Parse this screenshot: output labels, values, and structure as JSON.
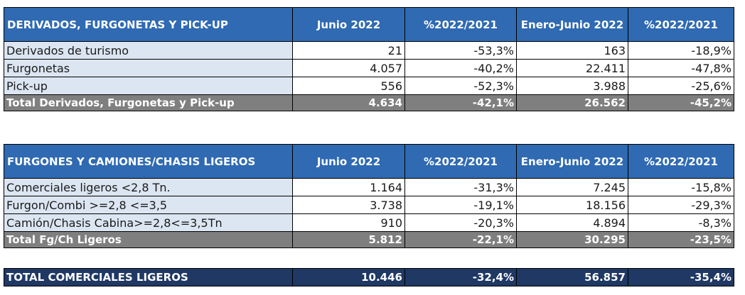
{
  "table1": {
    "headers": [
      "DERIVADOS, FURGONETAS Y PICK-UP",
      "Junio 2022",
      "%2022/2021",
      "Enero-Junio 2022",
      "%2022/2021"
    ],
    "rows": [
      [
        "Derivados de turismo",
        "21",
        "-53,3%",
        "163",
        "-18,9%"
      ],
      [
        "Furgonetas",
        "4.057",
        "-40,2%",
        "22.411",
        "-47,8%"
      ],
      [
        "Pick-up",
        "556",
        "-52,3%",
        "3.988",
        "-25,6%"
      ]
    ],
    "total": [
      "Total Derivados, Furgonetas y Pick-up",
      "4.634",
      "-42,1%",
      "26.562",
      "-45,2%"
    ]
  },
  "table2": {
    "headers": [
      "FURGONES Y CAMIONES/CHASIS LIGEROS",
      "Junio 2022",
      "%2022/2021",
      "Enero-Junio 2022",
      "%2022/2021"
    ],
    "rows": [
      [
        "Comerciales ligeros <2,8 Tn.",
        "1.164",
        "-31,3%",
        "7.245",
        "-15,8%"
      ],
      [
        "Furgon/Combi >=2,8 <=3,5",
        "3.738",
        "-19,1%",
        "18.156",
        "-29,3%"
      ],
      [
        "Camión/Chasis Cabina>=2,8<=3,5Tn",
        "910",
        "-20,3%",
        "4.894",
        "-8,3%"
      ]
    ],
    "total": [
      "Total Fg/Ch Ligeros",
      "5.812",
      "-22,1%",
      "30.295",
      "-23,5%"
    ]
  },
  "grand_total": [
    "TOTAL COMERCIALES LIGEROS",
    "10.446",
    "-32,4%",
    "56.857",
    "-35,4%"
  ],
  "colors": {
    "header": "#2f6ab2",
    "label_bg": "#dce6f2",
    "total_bg": "#7f7f7f",
    "grand_bg": "#1f3864"
  }
}
